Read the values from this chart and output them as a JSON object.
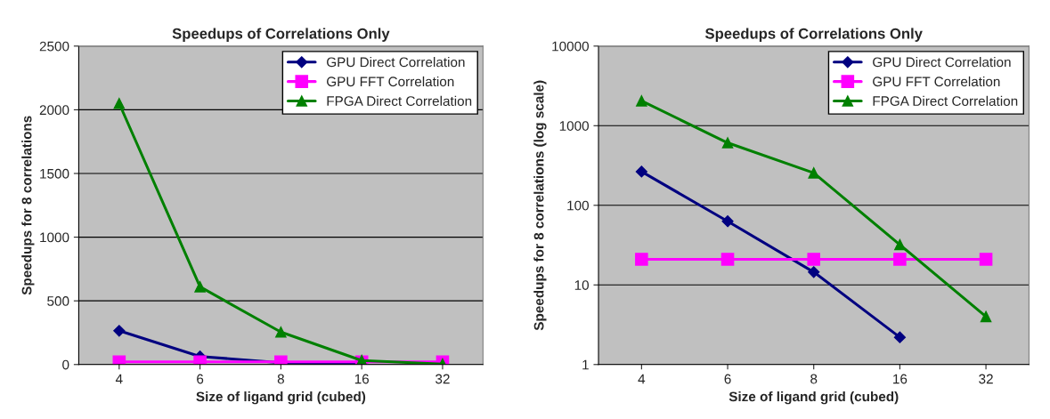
{
  "chart_data": [
    {
      "type": "line",
      "title": "Speedups of Correlations Only",
      "xlabel": "Size of ligand grid (cubed)",
      "ylabel": "Speedups for 8 correlations",
      "categories": [
        "4",
        "6",
        "8",
        "16",
        "32"
      ],
      "series": [
        {
          "name": "GPU Direct Correlation",
          "color": "#000080",
          "marker": "diamond",
          "values": [
            265,
            63,
            14.5,
            2.2,
            null
          ]
        },
        {
          "name": "GPU FFT Correlation",
          "color": "#ff00ff",
          "marker": "square",
          "values": [
            21,
            21,
            21,
            21,
            21
          ]
        },
        {
          "name": "FPGA Direct Correlation",
          "color": "#008000",
          "marker": "triangle",
          "values": [
            2050,
            610,
            255,
            32,
            4
          ]
        }
      ],
      "ylim": [
        0,
        2500
      ],
      "yticks": [
        0,
        500,
        1000,
        1500,
        2000,
        2500
      ],
      "grid": "y",
      "legend": "top right"
    },
    {
      "type": "line",
      "title": "Speedups of Correlations Only",
      "xlabel": "Size of ligand grid (cubed)",
      "ylabel": "Speedups for 8 correlations (log scale)",
      "categories": [
        "4",
        "6",
        "8",
        "16",
        "32"
      ],
      "series": [
        {
          "name": "GPU Direct Correlation",
          "color": "#000080",
          "marker": "diamond",
          "values": [
            265,
            63,
            14.5,
            2.2,
            null
          ]
        },
        {
          "name": "GPU FFT Correlation",
          "color": "#ff00ff",
          "marker": "square",
          "values": [
            21,
            21,
            21,
            21,
            21
          ]
        },
        {
          "name": "FPGA Direct Correlation",
          "color": "#008000",
          "marker": "triangle",
          "values": [
            2050,
            610,
            255,
            32,
            4
          ]
        }
      ],
      "log": "y",
      "ylim": [
        1,
        10000
      ],
      "yticks": [
        1,
        10,
        100,
        1000,
        10000
      ],
      "grid": "y",
      "legend": "top right"
    }
  ]
}
